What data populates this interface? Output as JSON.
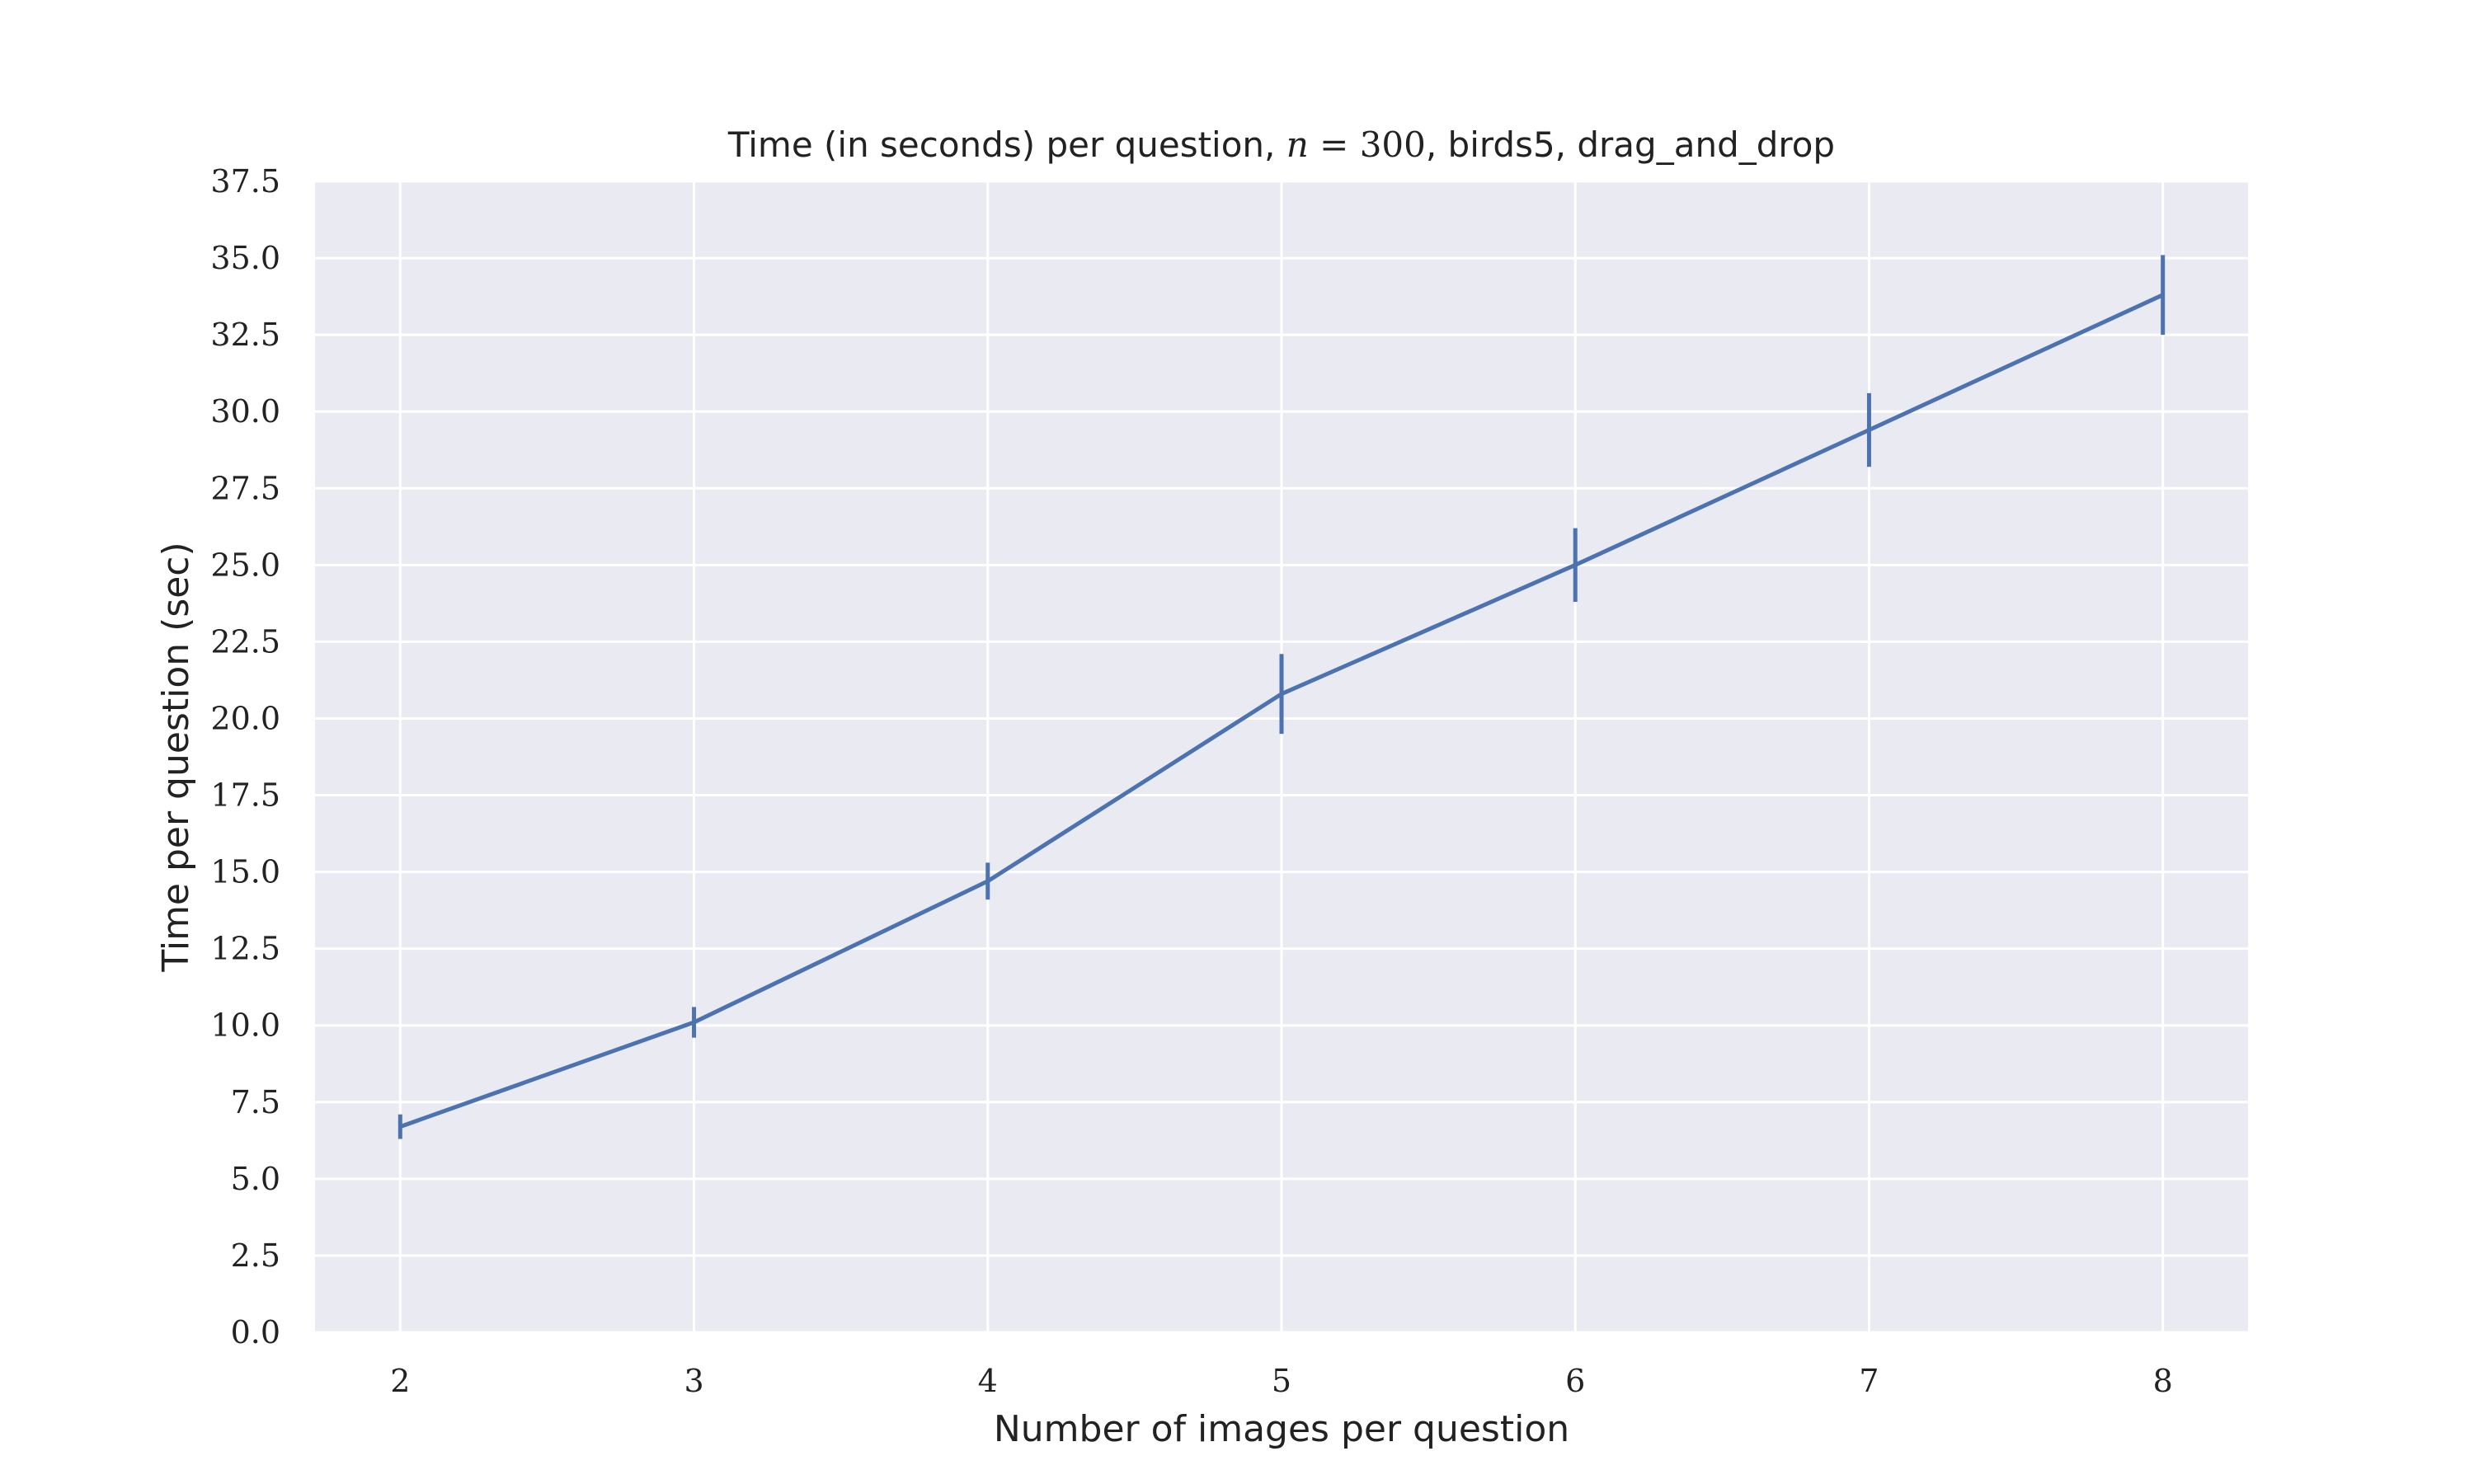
{
  "chart_data": {
    "type": "line",
    "title": {
      "prefix": "Time (in seconds) per question, ",
      "math_var": "n",
      "math_rest": " = 300",
      "suffix": ", birds5, drag_and_drop"
    },
    "xlabel": "Number of images per question",
    "ylabel": "Time per question (sec)",
    "x": [
      2,
      3,
      4,
      5,
      6,
      7,
      8
    ],
    "series": [
      {
        "values": [
          6.7,
          10.1,
          14.7,
          20.8,
          25.0,
          29.4,
          33.8
        ],
        "errors": [
          0.4,
          0.5,
          0.6,
          1.3,
          1.2,
          1.2,
          1.3
        ]
      }
    ],
    "xticks": [
      "2",
      "3",
      "4",
      "5",
      "6",
      "7",
      "8"
    ],
    "yticks": [
      "0.0",
      "2.5",
      "5.0",
      "7.5",
      "10.0",
      "12.5",
      "15.0",
      "17.5",
      "20.0",
      "22.5",
      "25.0",
      "27.5",
      "30.0",
      "32.5",
      "35.0",
      "37.5"
    ],
    "xlim": [
      1.71,
      8.29
    ],
    "ylim": [
      0,
      37.5
    ],
    "grid": true,
    "colors": {
      "line": "#4c72b0",
      "background": "#eaeaf2",
      "grid": "#ffffff"
    }
  }
}
